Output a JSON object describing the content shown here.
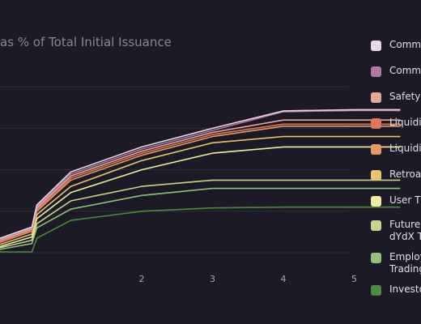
{
  "chart_data": {
    "type": "line",
    "title": "as % of Total Initial Issuance",
    "xlabel": "",
    "ylabel": "",
    "x_ticks": [
      "2",
      "3",
      "4",
      "5"
    ],
    "grid": "horizontal",
    "legend_position": "right",
    "x": [
      0.0,
      0.45,
      0.52,
      1.0,
      2.0,
      3.0,
      4.0,
      5.0,
      5.65
    ],
    "series": [
      {
        "name": "Comm",
        "color": "#e8d6e4",
        "values": [
          0.35,
          0.62,
          1.15,
          1.95,
          2.55,
          3.0,
          3.42,
          3.45,
          3.45
        ]
      },
      {
        "name": "Comm",
        "color": "#b07aa6",
        "values": [
          0.33,
          0.6,
          1.12,
          1.9,
          2.5,
          2.95,
          3.4,
          3.43,
          3.43
        ]
      },
      {
        "name": "Safety",
        "color": "#e8a79a",
        "values": [
          0.3,
          0.57,
          1.08,
          1.85,
          2.45,
          2.9,
          3.2,
          3.2,
          3.2
        ]
      },
      {
        "name": "Liquidi",
        "color": "#e07655",
        "values": [
          0.27,
          0.54,
          1.04,
          1.8,
          2.4,
          2.85,
          3.1,
          3.1,
          3.1
        ]
      },
      {
        "name": "Liquidi",
        "color": "#e49a62",
        "values": [
          0.25,
          0.52,
          1.0,
          1.75,
          2.35,
          2.8,
          3.05,
          3.05,
          3.05
        ]
      },
      {
        "name": "Retroa",
        "color": "#e8c46e",
        "values": [
          0.2,
          0.45,
          0.92,
          1.6,
          2.22,
          2.65,
          2.8,
          2.8,
          2.8
        ]
      },
      {
        "name": "User T",
        "color": "#f2eca0",
        "values": [
          0.15,
          0.38,
          0.82,
          1.45,
          2.0,
          2.4,
          2.55,
          2.55,
          2.55
        ]
      },
      {
        "name": "Future\ndYdX T",
        "color": "#c9d68a",
        "values": [
          0.12,
          0.3,
          0.7,
          1.25,
          1.6,
          1.75,
          1.75,
          1.75,
          1.75
        ]
      },
      {
        "name": "Employ\nTrading",
        "color": "#90c27c",
        "values": [
          0.08,
          0.22,
          0.6,
          1.05,
          1.38,
          1.55,
          1.55,
          1.55,
          1.55
        ]
      },
      {
        "name": "Investo",
        "color": "#4f8a3e",
        "values": [
          0.02,
          0.02,
          0.35,
          0.78,
          1.0,
          1.08,
          1.1,
          1.1,
          1.1
        ]
      }
    ]
  }
}
